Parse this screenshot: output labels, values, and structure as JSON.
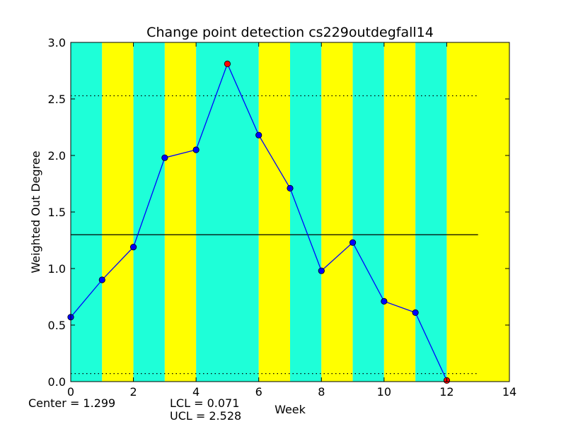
{
  "chart_data": {
    "type": "line",
    "title": "Change point detection cs229outdegfall14",
    "xlabel": "Week",
    "ylabel": "Weighted Out Degree",
    "xlim": [
      0,
      14
    ],
    "ylim": [
      0,
      3.0
    ],
    "x_ticks": [
      "0",
      "2",
      "4",
      "6",
      "8",
      "10",
      "12",
      "14"
    ],
    "y_ticks": [
      "0.0",
      "0.5",
      "1.0",
      "1.5",
      "2.0",
      "2.5",
      "3.0"
    ],
    "grid": false,
    "background_bands": {
      "colors": [
        "#1effd8",
        "#ffff00"
      ],
      "segments": [
        {
          "x0": 0,
          "x1": 1,
          "color": "#1effd8"
        },
        {
          "x0": 1,
          "x1": 2,
          "color": "#ffff00"
        },
        {
          "x0": 2,
          "x1": 3,
          "color": "#1effd8"
        },
        {
          "x0": 3,
          "x1": 4,
          "color": "#ffff00"
        },
        {
          "x0": 4,
          "x1": 6,
          "color": "#1effd8"
        },
        {
          "x0": 6,
          "x1": 7,
          "color": "#ffff00"
        },
        {
          "x0": 7,
          "x1": 8,
          "color": "#1effd8"
        },
        {
          "x0": 8,
          "x1": 9,
          "color": "#ffff00"
        },
        {
          "x0": 9,
          "x1": 10,
          "color": "#1effd8"
        },
        {
          "x0": 10,
          "x1": 11,
          "color": "#ffff00"
        },
        {
          "x0": 11,
          "x1": 12,
          "color": "#1effd8"
        },
        {
          "x0": 12,
          "x1": 14,
          "color": "#ffff00"
        }
      ]
    },
    "series": [
      {
        "color": "#0000ff",
        "x": [
          0,
          1,
          2,
          3,
          4,
          5,
          6,
          7,
          8,
          9,
          10,
          11,
          12
        ],
        "y": [
          0.57,
          0.9,
          1.19,
          1.98,
          2.05,
          2.81,
          2.18,
          1.71,
          0.98,
          1.23,
          0.71,
          0.61,
          0.01
        ],
        "point_colors": [
          "#0000ff",
          "#0000ff",
          "#0000ff",
          "#0000ff",
          "#0000ff",
          "#ff0000",
          "#0000ff",
          "#0000ff",
          "#0000ff",
          "#0000ff",
          "#0000ff",
          "#0000ff",
          "#ff0000"
        ]
      }
    ],
    "center_line": {
      "value": 1.299,
      "x_range": [
        0,
        13
      ],
      "style": "solid"
    },
    "control_limits": {
      "lcl": 0.071,
      "ucl": 2.528,
      "x_range": [
        0,
        13
      ],
      "style": "dotted"
    },
    "stats": {
      "center_label": "Center = 1.299",
      "lcl_label": "LCL = 0.071",
      "ucl_label": "UCL = 2.528"
    }
  }
}
